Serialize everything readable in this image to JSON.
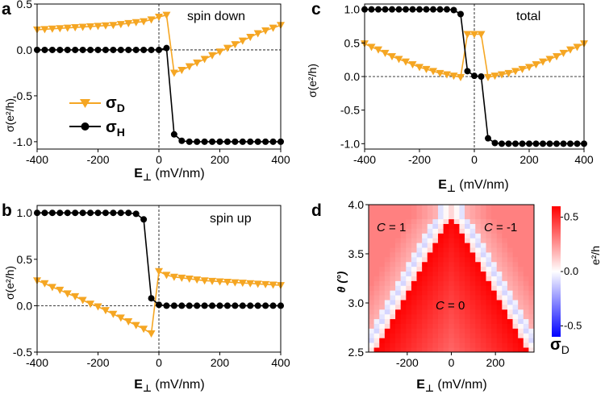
{
  "chart_data": [
    {
      "type": "line",
      "panel_label": "a",
      "title": "spin down",
      "xlabel_main": "E",
      "xlabel_sub": "⊥",
      "xlabel_units": " (mV/nm)",
      "ylabel": "σ(e²/h)",
      "xlim": [
        -400,
        400
      ],
      "ylim": [
        -1.08,
        0.5
      ],
      "xticks": [
        -400,
        -200,
        0,
        200,
        400
      ],
      "yticks": [
        -1.0,
        -0.5,
        0.0,
        0.5
      ],
      "ytick_labels": [
        "-1.0",
        "-0.5",
        "0.0",
        "0.5"
      ],
      "legend": {
        "entries": [
          {
            "main": "σ",
            "sub": "D"
          },
          {
            "main": "σ",
            "sub": "H"
          }
        ],
        "placement": "left-middle"
      },
      "series": [
        {
          "name": "σ_D",
          "color": "#f5a623",
          "marker": "triangle-down",
          "x": [
            -400,
            -375,
            -350,
            -325,
            -300,
            -275,
            -250,
            -225,
            -200,
            -175,
            -150,
            -125,
            -100,
            -75,
            -50,
            -25,
            0,
            25,
            50,
            75,
            100,
            125,
            150,
            175,
            200,
            225,
            250,
            275,
            300,
            325,
            350,
            375,
            400
          ],
          "y": [
            0.22,
            0.225,
            0.23,
            0.235,
            0.24,
            0.245,
            0.25,
            0.255,
            0.26,
            0.265,
            0.27,
            0.28,
            0.29,
            0.3,
            0.31,
            0.33,
            0.36,
            0.38,
            -0.25,
            -0.22,
            -0.18,
            -0.14,
            -0.1,
            -0.06,
            -0.02,
            0.02,
            0.06,
            0.1,
            0.14,
            0.18,
            0.21,
            0.24,
            0.27
          ]
        },
        {
          "name": "σ_H",
          "color": "#000000",
          "marker": "circle",
          "x": [
            -400,
            -375,
            -350,
            -325,
            -300,
            -275,
            -250,
            -225,
            -200,
            -175,
            -150,
            -125,
            -100,
            -75,
            -50,
            -25,
            0,
            25,
            50,
            75,
            100,
            125,
            150,
            175,
            200,
            225,
            250,
            275,
            300,
            325,
            350,
            375,
            400
          ],
          "y": [
            0,
            0,
            0,
            0,
            0,
            0,
            0,
            0,
            0,
            0,
            0,
            0,
            0,
            0,
            0,
            0,
            0,
            0.02,
            -0.92,
            -0.99,
            -1,
            -1,
            -1,
            -1,
            -1,
            -1,
            -1,
            -1,
            -1,
            -1,
            -1,
            -1,
            -1
          ]
        }
      ]
    },
    {
      "type": "line",
      "panel_label": "b",
      "title": "spin up",
      "xlabel_main": "E",
      "xlabel_sub": "⊥",
      "xlabel_units": " (mV/nm)",
      "ylabel": "σ(e²/h)",
      "xlim": [
        -400,
        400
      ],
      "ylim": [
        -0.5,
        1.08
      ],
      "xticks": [
        -400,
        -200,
        0,
        200,
        400
      ],
      "yticks": [
        -0.5,
        0.0,
        0.5,
        1.0
      ],
      "ytick_labels": [
        "-0.5",
        "0.0",
        "0.5",
        "1.0"
      ],
      "series": [
        {
          "name": "σ_D",
          "color": "#f5a623",
          "marker": "triangle-down",
          "x": [
            -400,
            -375,
            -350,
            -325,
            -300,
            -275,
            -250,
            -225,
            -200,
            -175,
            -150,
            -125,
            -100,
            -75,
            -50,
            -25,
            0,
            25,
            50,
            75,
            100,
            125,
            150,
            175,
            200,
            225,
            250,
            275,
            300,
            325,
            350,
            375,
            400
          ],
          "y": [
            0.27,
            0.24,
            0.2,
            0.17,
            0.13,
            0.1,
            0.06,
            0.02,
            -0.01,
            -0.05,
            -0.09,
            -0.13,
            -0.17,
            -0.21,
            -0.25,
            -0.3,
            0.37,
            0.33,
            0.31,
            0.3,
            0.29,
            0.28,
            0.27,
            0.265,
            0.26,
            0.255,
            0.25,
            0.245,
            0.24,
            0.235,
            0.23,
            0.225,
            0.22
          ]
        },
        {
          "name": "σ_H",
          "color": "#000000",
          "marker": "circle",
          "x": [
            -400,
            -375,
            -350,
            -325,
            -300,
            -275,
            -250,
            -225,
            -200,
            -175,
            -150,
            -125,
            -100,
            -75,
            -50,
            -25,
            0,
            25,
            50,
            75,
            100,
            125,
            150,
            175,
            200,
            225,
            250,
            275,
            300,
            325,
            350,
            375,
            400
          ],
          "y": [
            1,
            1,
            1,
            1,
            1,
            1,
            1,
            1,
            1,
            1,
            1,
            1,
            1,
            0.99,
            0.93,
            0.08,
            0.01,
            0,
            0,
            0,
            0,
            0,
            0,
            0,
            0,
            0,
            0,
            0,
            0,
            0,
            0,
            0,
            0
          ]
        }
      ]
    },
    {
      "type": "line",
      "panel_label": "c",
      "title": "total",
      "xlabel_main": "E",
      "xlabel_sub": "⊥",
      "xlabel_units": " (mV/nm)",
      "ylabel": "σ(e²/h)",
      "xlim": [
        -400,
        400
      ],
      "ylim": [
        -1.08,
        1.08
      ],
      "xticks": [
        -400,
        -200,
        0,
        200,
        400
      ],
      "yticks": [
        -1.0,
        -0.5,
        0.0,
        0.5,
        1.0
      ],
      "ytick_labels": [
        "-1.0",
        "-0.5",
        "0.0",
        "0.5",
        "1.0"
      ],
      "series": [
        {
          "name": "σ_D",
          "color": "#f5a623",
          "marker": "triangle-down",
          "x": [
            -400,
            -375,
            -350,
            -325,
            -300,
            -275,
            -250,
            -225,
            -200,
            -175,
            -150,
            -125,
            -100,
            -75,
            -50,
            -25,
            0,
            25,
            50,
            75,
            100,
            125,
            150,
            175,
            200,
            225,
            250,
            275,
            300,
            325,
            350,
            375,
            400
          ],
          "y": [
            0.49,
            0.44,
            0.4,
            0.35,
            0.3,
            0.26,
            0.22,
            0.18,
            0.14,
            0.11,
            0.08,
            0.05,
            0.03,
            0.01,
            -0.01,
            0.63,
            0.63,
            0.63,
            -0.01,
            0.01,
            0.03,
            0.05,
            0.08,
            0.11,
            0.14,
            0.18,
            0.22,
            0.26,
            0.3,
            0.35,
            0.4,
            0.44,
            0.49
          ]
        },
        {
          "name": "σ_H",
          "color": "#000000",
          "marker": "circle",
          "x": [
            -400,
            -375,
            -350,
            -325,
            -300,
            -275,
            -250,
            -225,
            -200,
            -175,
            -150,
            -125,
            -100,
            -75,
            -50,
            -25,
            0,
            25,
            50,
            75,
            100,
            125,
            150,
            175,
            200,
            225,
            250,
            275,
            300,
            325,
            350,
            375,
            400
          ],
          "y": [
            1,
            1,
            1,
            1,
            1,
            1,
            1,
            1,
            1,
            1,
            1,
            1,
            1,
            0.99,
            0.93,
            0.08,
            0.01,
            0.0,
            -0.92,
            -0.99,
            -1,
            -1,
            -1,
            -1,
            -1,
            -1,
            -1,
            -1,
            -1,
            -1,
            -1,
            -1,
            -1
          ]
        }
      ]
    },
    {
      "type": "heatmap",
      "panel_label": "d",
      "xlabel_main": "E",
      "xlabel_sub": "⊥",
      "xlabel_units": " (mV/nm)",
      "ylabel": "θ (°)",
      "xlim": [
        -375,
        375
      ],
      "ylim": [
        2.5,
        4.0
      ],
      "xticks": [
        -200,
        0,
        200
      ],
      "yticks": [
        2.5,
        3.0,
        3.5,
        4.0
      ],
      "ytick_labels": [
        "2.5",
        "3.0",
        "3.5",
        "4.0"
      ],
      "colorbar": {
        "label": "e²/h",
        "title_main": "σ",
        "title_sub": "D",
        "range": [
          -0.6,
          0.6
        ],
        "ticks": [
          0.5,
          0.0,
          -0.5
        ],
        "tick_labels": [
          "0.5",
          "0.0",
          "-0.5"
        ],
        "colormap": "bwr"
      },
      "annotations": [
        {
          "text_prefix": "C",
          "text_suffix": " = 1",
          "region": "top-left"
        },
        {
          "text_prefix": "C",
          "text_suffix": " = -1",
          "region": "top-right"
        },
        {
          "text_prefix": "C",
          "text_suffix": " = 0",
          "region": "center"
        }
      ],
      "grid": {
        "x_min": -375,
        "x_max": 375,
        "x_step": 25,
        "y_min": 2.5,
        "y_max": 4.0,
        "y_step": 0.05
      },
      "model": {
        "boundary_intercept": 392,
        "boundary_slope_per_degree": 250,
        "wall_width": 38,
        "top_flat_start": 3.9,
        "top_flat_halfwidth": 30
      }
    }
  ]
}
